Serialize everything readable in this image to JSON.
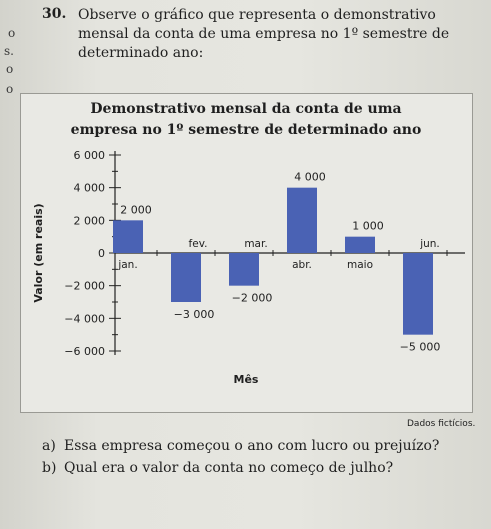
{
  "question": {
    "number": "30.",
    "line1": "Observe o gráfico que representa o demonstrativo",
    "line2": "mensal da conta de uma empresa no 1º semestre de",
    "line3": "determinado ano:"
  },
  "margin_marks": [
    "o",
    "s.",
    "o",
    "o"
  ],
  "source_note": "Dados fictícios.",
  "items": [
    {
      "label": "a)",
      "text": "Essa empresa começou o ano com lucro ou prejuízo?"
    },
    {
      "label": "b)",
      "text": "Qual era o valor da conta no começo de julho?"
    }
  ],
  "chart_data": {
    "type": "bar",
    "title_line1": "Demonstrativo mensal da conta de uma",
    "title_line2": "empresa no 1º semestre de determinado ano",
    "ylabel": "Valor (em reais)",
    "xlabel": "Mês",
    "categories": [
      "jan.",
      "fev.",
      "mar.",
      "abr.",
      "maio",
      "jun."
    ],
    "values": [
      2000,
      -3000,
      -2000,
      4000,
      1000,
      -5000
    ],
    "value_labels": [
      "2 000",
      "−3 000",
      "−2 000",
      "4 000",
      "1 000",
      "−5 000"
    ],
    "yticks": [
      6000,
      4000,
      2000,
      0,
      -2000,
      -4000,
      -6000
    ],
    "ytick_labels": [
      "6 000",
      "4 000",
      "2 000",
      "0",
      "−2 000",
      "−4 000",
      "−6 000"
    ],
    "ylim": [
      -6000,
      6000
    ],
    "bar_color": "#4a62b4",
    "grid": false,
    "legend": "none"
  }
}
